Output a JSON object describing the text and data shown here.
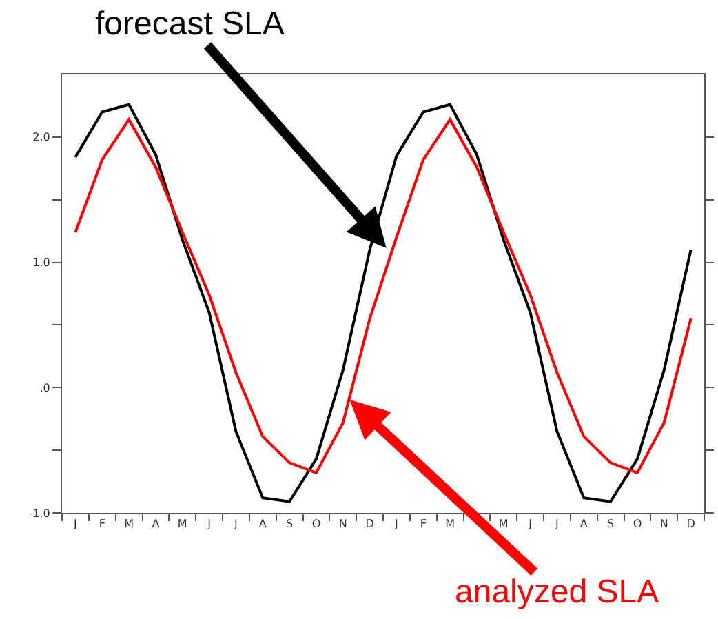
{
  "chart_data": {
    "type": "line",
    "categories": [
      "J",
      "F",
      "M",
      "A",
      "M",
      "J",
      "J",
      "A",
      "S",
      "O",
      "N",
      "D",
      "J",
      "F",
      "M",
      null,
      "M",
      "J",
      "J",
      "A",
      "S",
      "O",
      "N",
      "D"
    ],
    "series": [
      {
        "color": "#000000",
        "values": [
          1.84,
          2.2,
          2.26,
          1.86,
          1.18,
          0.6,
          -0.35,
          -0.88,
          -0.91,
          -0.57,
          0.14,
          1.1,
          1.85,
          2.2,
          2.26,
          1.86,
          1.18,
          0.6,
          -0.35,
          -0.88,
          -0.91,
          -0.57,
          0.14,
          1.1
        ]
      },
      {
        "color": "#ff0000",
        "values": [
          1.24,
          1.82,
          2.14,
          1.76,
          1.24,
          0.74,
          0.12,
          -0.39,
          -0.6,
          -0.68,
          -0.28,
          0.55,
          1.2,
          1.82,
          2.14,
          1.76,
          1.24,
          0.74,
          0.12,
          -0.39,
          -0.6,
          -0.68,
          -0.28,
          0.55
        ]
      }
    ],
    "ylim": [
      -1.0,
      2.5
    ],
    "yticks": [
      {
        "value": -1.0,
        "label": "-1.0"
      },
      {
        "value": -0.5,
        "label": null
      },
      {
        "value": 0,
        "label": ".0"
      },
      {
        "value": 0.5,
        "label": null
      },
      {
        "value": 1.0,
        "label": "1.0"
      },
      {
        "value": 1.5,
        "label": null
      },
      {
        "value": 2.0,
        "label": "2.0"
      }
    ],
    "annotations": [
      "forecast SLA",
      "analyzed SLA"
    ],
    "marker": "none",
    "line_style": "solid"
  }
}
